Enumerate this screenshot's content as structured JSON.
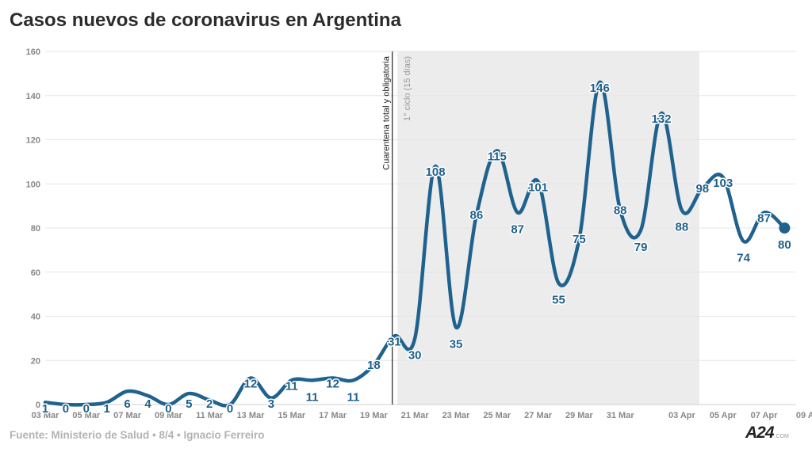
{
  "title": "Casos nuevos de coronavirus en Argentina",
  "source": "Fuente: Ministerio de Salud • 8/4 • Ignacio Ferreiro",
  "brand": {
    "logo": "A24",
    "suffix": ".COM"
  },
  "colors": {
    "line": "#1f628e",
    "label": "#1f5f8b",
    "band": "#ececec",
    "grid": "#e6e6e6",
    "annotation": "#222222"
  },
  "chart_data": {
    "type": "line",
    "title": "Casos nuevos de coronavirus en Argentina",
    "xlabel": "",
    "ylabel": "",
    "ylim": [
      0,
      160
    ],
    "yticks": [
      0,
      20,
      40,
      60,
      80,
      100,
      120,
      140,
      160
    ],
    "grid": true,
    "x": [
      "03 Mar",
      "04 Mar",
      "05 Mar",
      "06 Mar",
      "07 Mar",
      "08 Mar",
      "09 Mar",
      "10 Mar",
      "11 Mar",
      "12 Mar",
      "13 Mar",
      "14 Mar",
      "15 Mar",
      "16 Mar",
      "17 Mar",
      "18 Mar",
      "19 Mar",
      "20 Mar",
      "21 Mar",
      "22 Mar",
      "23 Mar",
      "24 Mar",
      "25 Mar",
      "26 Mar",
      "27 Mar",
      "28 Mar",
      "29 Mar",
      "30 Mar",
      "31 Mar",
      "01 Apr",
      "02 Apr",
      "03 Apr",
      "04 Apr",
      "05 Apr",
      "06 Apr",
      "07 Apr",
      "08 Apr"
    ],
    "xticks": [
      "03 Mar",
      "05 Mar",
      "07 Mar",
      "09 Mar",
      "11 Mar",
      "13 Mar",
      "15 Mar",
      "17 Mar",
      "19 Mar",
      "21 Mar",
      "23 Mar",
      "25 Mar",
      "27 Mar",
      "29 Mar",
      "31 Mar",
      "03 Apr",
      "05 Apr",
      "07 Apr",
      "09 A"
    ],
    "values": [
      1,
      0,
      0,
      1,
      6,
      4,
      0,
      5,
      2,
      0,
      12,
      3,
      11,
      11,
      12,
      11,
      18,
      31,
      30,
      108,
      35,
      86,
      115,
      87,
      101,
      55,
      75,
      146,
      88,
      79,
      132,
      88,
      98,
      103,
      74,
      87,
      80
    ],
    "annotations": [
      {
        "type": "vline",
        "x": "20 Mar",
        "label": "Cuarentena total y obligatoria"
      },
      {
        "type": "band",
        "from": "21 Mar",
        "to": "04 Apr",
        "label": "1° ciclo (15 días)"
      }
    ]
  }
}
